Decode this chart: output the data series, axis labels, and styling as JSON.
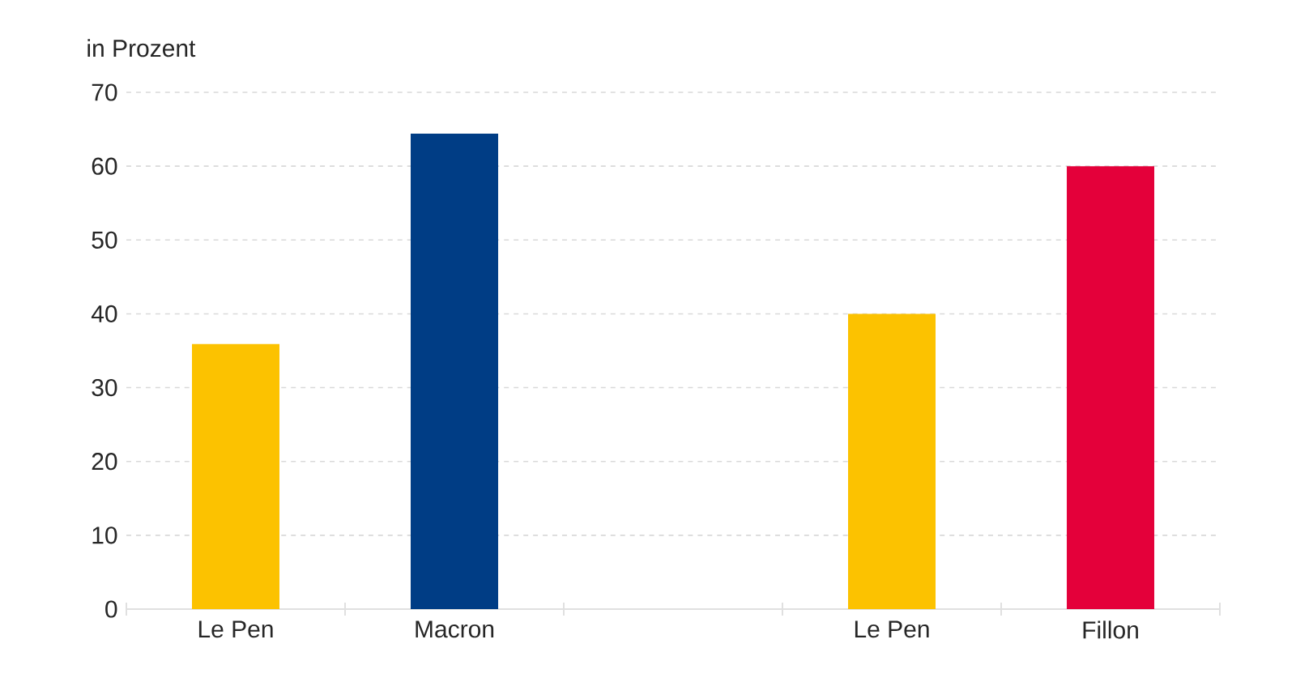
{
  "chart_data": {
    "type": "bar",
    "ylabel": "in Prozent",
    "categories": [
      "Le Pen",
      "Macron",
      null,
      "Le Pen",
      "Fillon"
    ],
    "values": [
      35.9,
      64.4,
      null,
      40,
      60
    ],
    "colors": [
      "#fcc200",
      "#003d85",
      null,
      "#fcc200",
      "#e4003a"
    ],
    "ylim": [
      0,
      70
    ],
    "yticks": [
      0,
      10,
      20,
      30,
      40,
      50,
      60,
      70
    ],
    "grid": "y"
  }
}
